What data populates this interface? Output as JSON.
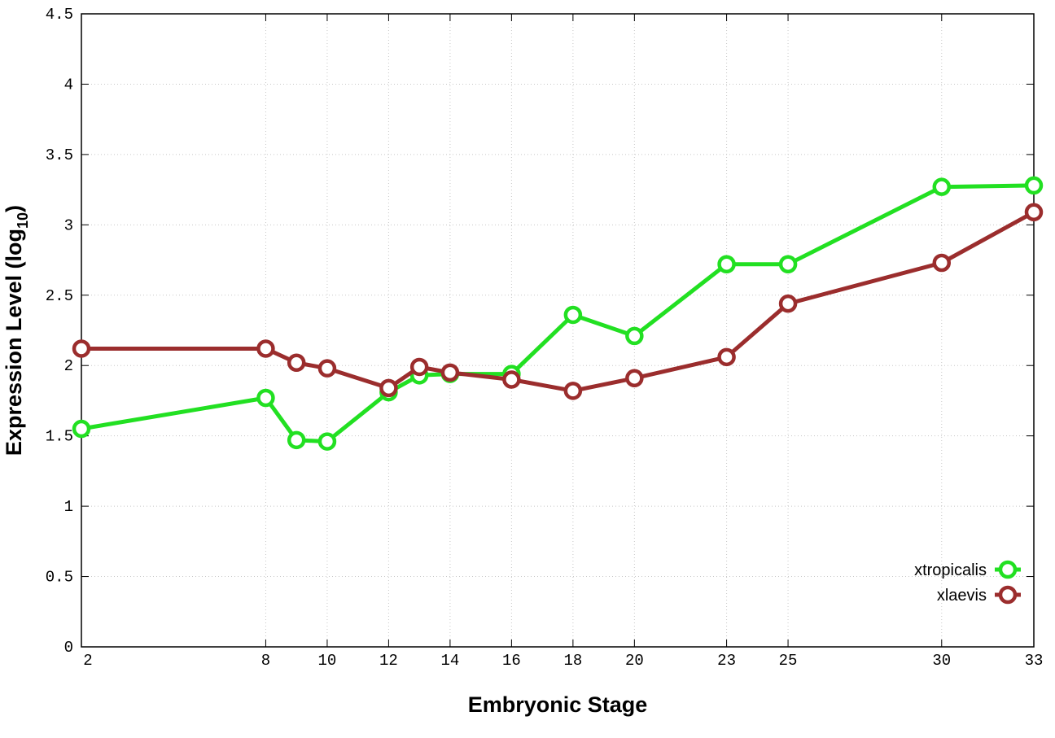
{
  "chart_data": {
    "type": "line",
    "xlabel": "Embryonic Stage",
    "ylabel_main": "Expression Level (log",
    "ylabel_sub": "10",
    "ylabel_close": ")",
    "x": [
      2,
      8,
      9,
      10,
      12,
      13,
      14,
      16,
      18,
      20,
      23,
      25,
      30,
      33
    ],
    "xticks": [
      "2",
      "8",
      "10",
      "12",
      "14",
      "16",
      "18",
      "20",
      "23",
      "25",
      "30",
      "33"
    ],
    "xtick_values": [
      2,
      8,
      10,
      12,
      14,
      16,
      18,
      20,
      23,
      25,
      30,
      33
    ],
    "yticks": [
      "0",
      "0.5",
      "1",
      "1.5",
      "2",
      "2.5",
      "3",
      "3.5",
      "4",
      "4.5"
    ],
    "ytick_values": [
      0,
      0.5,
      1,
      1.5,
      2,
      2.5,
      3,
      3.5,
      4,
      4.5
    ],
    "xlim": [
      2,
      33
    ],
    "ylim": [
      0,
      4.5
    ],
    "grid": true,
    "legend_position": "bottom-right",
    "series": [
      {
        "name": "xtropicalis",
        "color": "#22e022",
        "values": [
          1.55,
          1.77,
          1.47,
          1.46,
          1.81,
          1.93,
          1.94,
          1.94,
          2.36,
          2.21,
          2.72,
          2.72,
          3.27,
          3.28
        ]
      },
      {
        "name": "xlaevis",
        "color": "#9b2d2d",
        "values": [
          2.12,
          2.12,
          2.02,
          1.98,
          1.84,
          1.99,
          1.95,
          1.9,
          1.82,
          1.91,
          2.06,
          2.44,
          2.73,
          3.09
        ]
      }
    ]
  }
}
